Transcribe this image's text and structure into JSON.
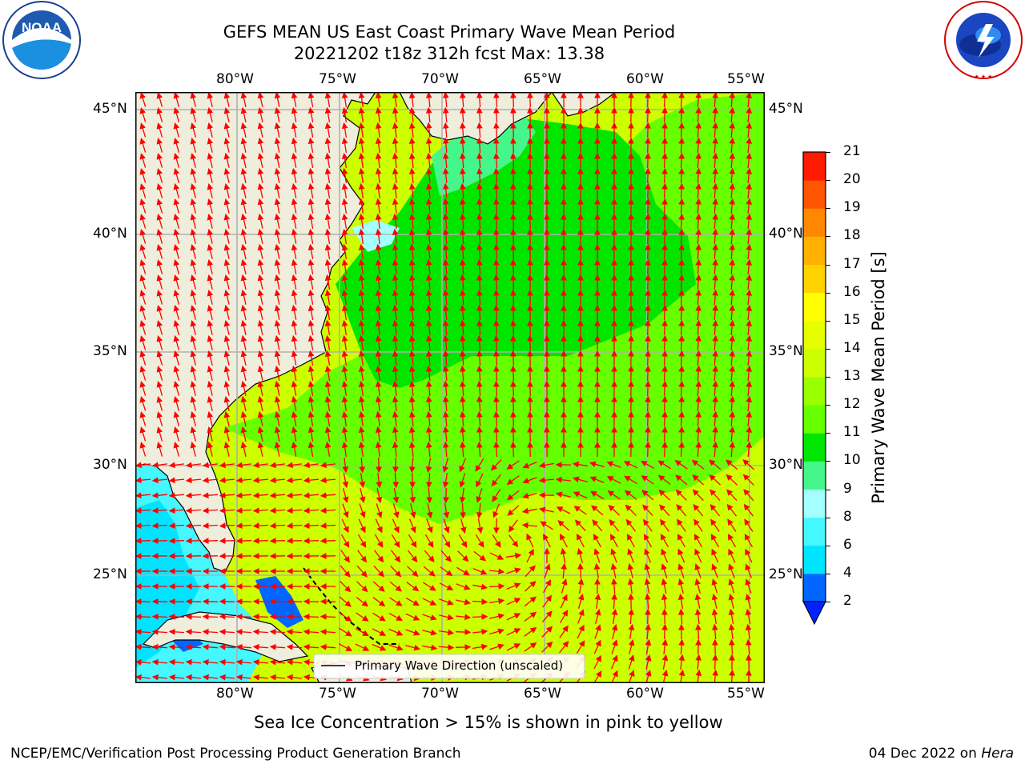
{
  "title": {
    "line1": "GEFS MEAN US East Coast Primary Wave Mean Period",
    "line2": "20221202 t18z 312h fcst   Max: 13.38"
  },
  "logos": {
    "left": {
      "name": "NOAA",
      "text": "NOAA"
    },
    "right": {
      "name": "National Weather Service",
      "text": "NATIONAL WEATHER SERVICE"
    }
  },
  "map": {
    "lon_labels": [
      "80°W",
      "75°W",
      "70°W",
      "65°W",
      "60°W",
      "55°W"
    ],
    "lat_labels": [
      "45°N",
      "40°N",
      "35°N",
      "30°N",
      "25°N"
    ],
    "lon_range": [
      -85,
      -54.5
    ],
    "lat_range": [
      20.5,
      46
    ],
    "legend_label": "Primary Wave Direction (unscaled)",
    "arrow_color": "#ff0000",
    "land_color": "#efeddc",
    "grid_color": "#b0b0b0"
  },
  "colorbar": {
    "label": "Primary Wave Mean Period [s]",
    "ticks": [
      "2",
      "4",
      "6",
      "8",
      "9",
      "10",
      "11",
      "12",
      "13",
      "14",
      "15",
      "16",
      "17",
      "18",
      "19",
      "20",
      "21"
    ],
    "colors": [
      "#0066ff",
      "#00e5ff",
      "#45f7ff",
      "#a4ffff",
      "#45f78a",
      "#00e600",
      "#66ff00",
      "#9aff00",
      "#ccff00",
      "#e5ff00",
      "#ffff00",
      "#ffd200",
      "#ffb000",
      "#ff8800",
      "#ff5500",
      "#ff1a00"
    ],
    "under_color": "#0022ff"
  },
  "notes": {
    "sea_ice": "Sea Ice Concentration > 15% is shown in pink to yellow",
    "left": "NCEP/EMC/Verification Post Processing Product Generation Branch",
    "date": "04 Dec 2022 on ",
    "machine": "Hera"
  }
}
